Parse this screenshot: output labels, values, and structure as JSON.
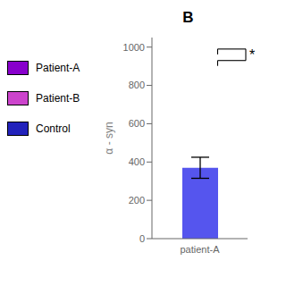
{
  "chart_data": {
    "type": "bar",
    "title": "B",
    "categories": [
      "patient-A"
    ],
    "values": [
      370
    ],
    "errors": [
      55
    ],
    "color": "#5555ee",
    "ylabel": "α - syn",
    "ylim": [
      0,
      1050
    ],
    "yticks": [
      0,
      200,
      400,
      600,
      800,
      1000
    ],
    "grid": false,
    "legend": "left",
    "legend_entries": [
      {
        "name": "Patient-A",
        "color": "#8800cc"
      },
      {
        "name": "Patient-B",
        "color": "#cc44cc"
      },
      {
        "name": "Control",
        "color": "#2222bb"
      }
    ],
    "annotations": [
      {
        "text": "*",
        "y1": 990,
        "y2": 930
      }
    ]
  }
}
